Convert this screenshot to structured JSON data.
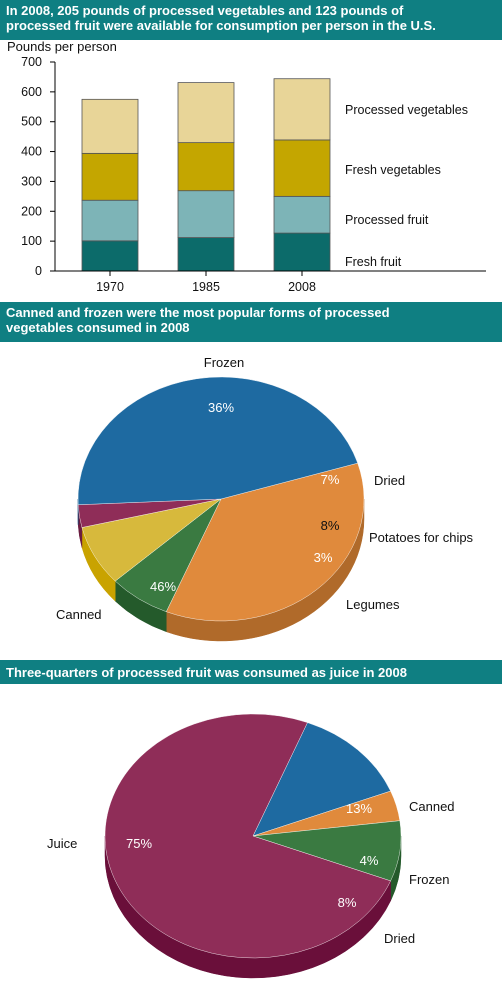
{
  "banners": {
    "chart1_line1": "In 2008, 205 pounds of processed vegetables and 123 pounds of",
    "chart1_line2": "processed fruit were available for consumption per person in the U.S.",
    "chart2_line1": "Canned and frozen were the most popular forms of processed",
    "chart2_line2": "vegetables consumed in 2008",
    "chart3_line1": "Three-quarters of processed fruit was consumed as juice in 2008"
  },
  "chart_data": [
    {
      "type": "bar",
      "stacked": true,
      "title": "In 2008, 205 pounds of processed vegetables and 123 pounds of processed fruit were available for consumption per person in the U.S.",
      "ylabel": "Pounds per person",
      "xlabel": "",
      "categories": [
        "1970",
        "1985",
        "2008"
      ],
      "ylim": [
        0,
        700
      ],
      "yticks": [
        0,
        100,
        200,
        300,
        400,
        500,
        600,
        700
      ],
      "grid": false,
      "legend": "right",
      "series": [
        {
          "name": "Fresh fruit",
          "color": "#0c6b6a",
          "values": [
            101,
            112,
            127
          ]
        },
        {
          "name": "Processed fruit",
          "color": "#7db4b7",
          "values": [
            136,
            157,
            123
          ]
        },
        {
          "name": "Fresh vegetables",
          "color": "#c4a600",
          "values": [
            157,
            161,
            189
          ]
        },
        {
          "name": "Processed vegetables",
          "color": "#e8d598",
          "values": [
            181,
            201,
            205
          ]
        }
      ]
    },
    {
      "type": "pie",
      "title": "Canned and frozen were the most popular forms of processed vegetables consumed in 2008",
      "slices": [
        {
          "label": "Frozen",
          "value": 36,
          "display": "36%",
          "color": "#e08a3c",
          "side": "#b06a2a"
        },
        {
          "label": "Dried",
          "value": 7,
          "display": "7%",
          "color": "#3a7a41",
          "side": "#245a2b"
        },
        {
          "label": "Potatoes for chips",
          "value": 8,
          "display": "8%",
          "color": "#d7b93c",
          "side": "#c9a300"
        },
        {
          "label": "Legumes",
          "value": 3,
          "display": "3%",
          "color": "#8f2d58",
          "side": "#6a1c40"
        },
        {
          "label": "Canned",
          "value": 46,
          "display": "46%",
          "color": "#1e6aa1",
          "side": "#0f4f83"
        }
      ]
    },
    {
      "type": "pie",
      "title": "Three-quarters of processed fruit was consumed as juice in 2008",
      "slices": [
        {
          "label": "Canned",
          "value": 13,
          "display": "13%",
          "color": "#1e6aa1",
          "side": "#0f4f83"
        },
        {
          "label": "Frozen",
          "value": 4,
          "display": "4%",
          "color": "#e08a3c",
          "side": "#c46d1e"
        },
        {
          "label": "Dried",
          "value": 8,
          "display": "8%",
          "color": "#3a7a41",
          "side": "#245a2b"
        },
        {
          "label": "Juice",
          "value": 75,
          "display": "75%",
          "color": "#8f2d58",
          "side": "#6a0f3a"
        }
      ]
    }
  ]
}
